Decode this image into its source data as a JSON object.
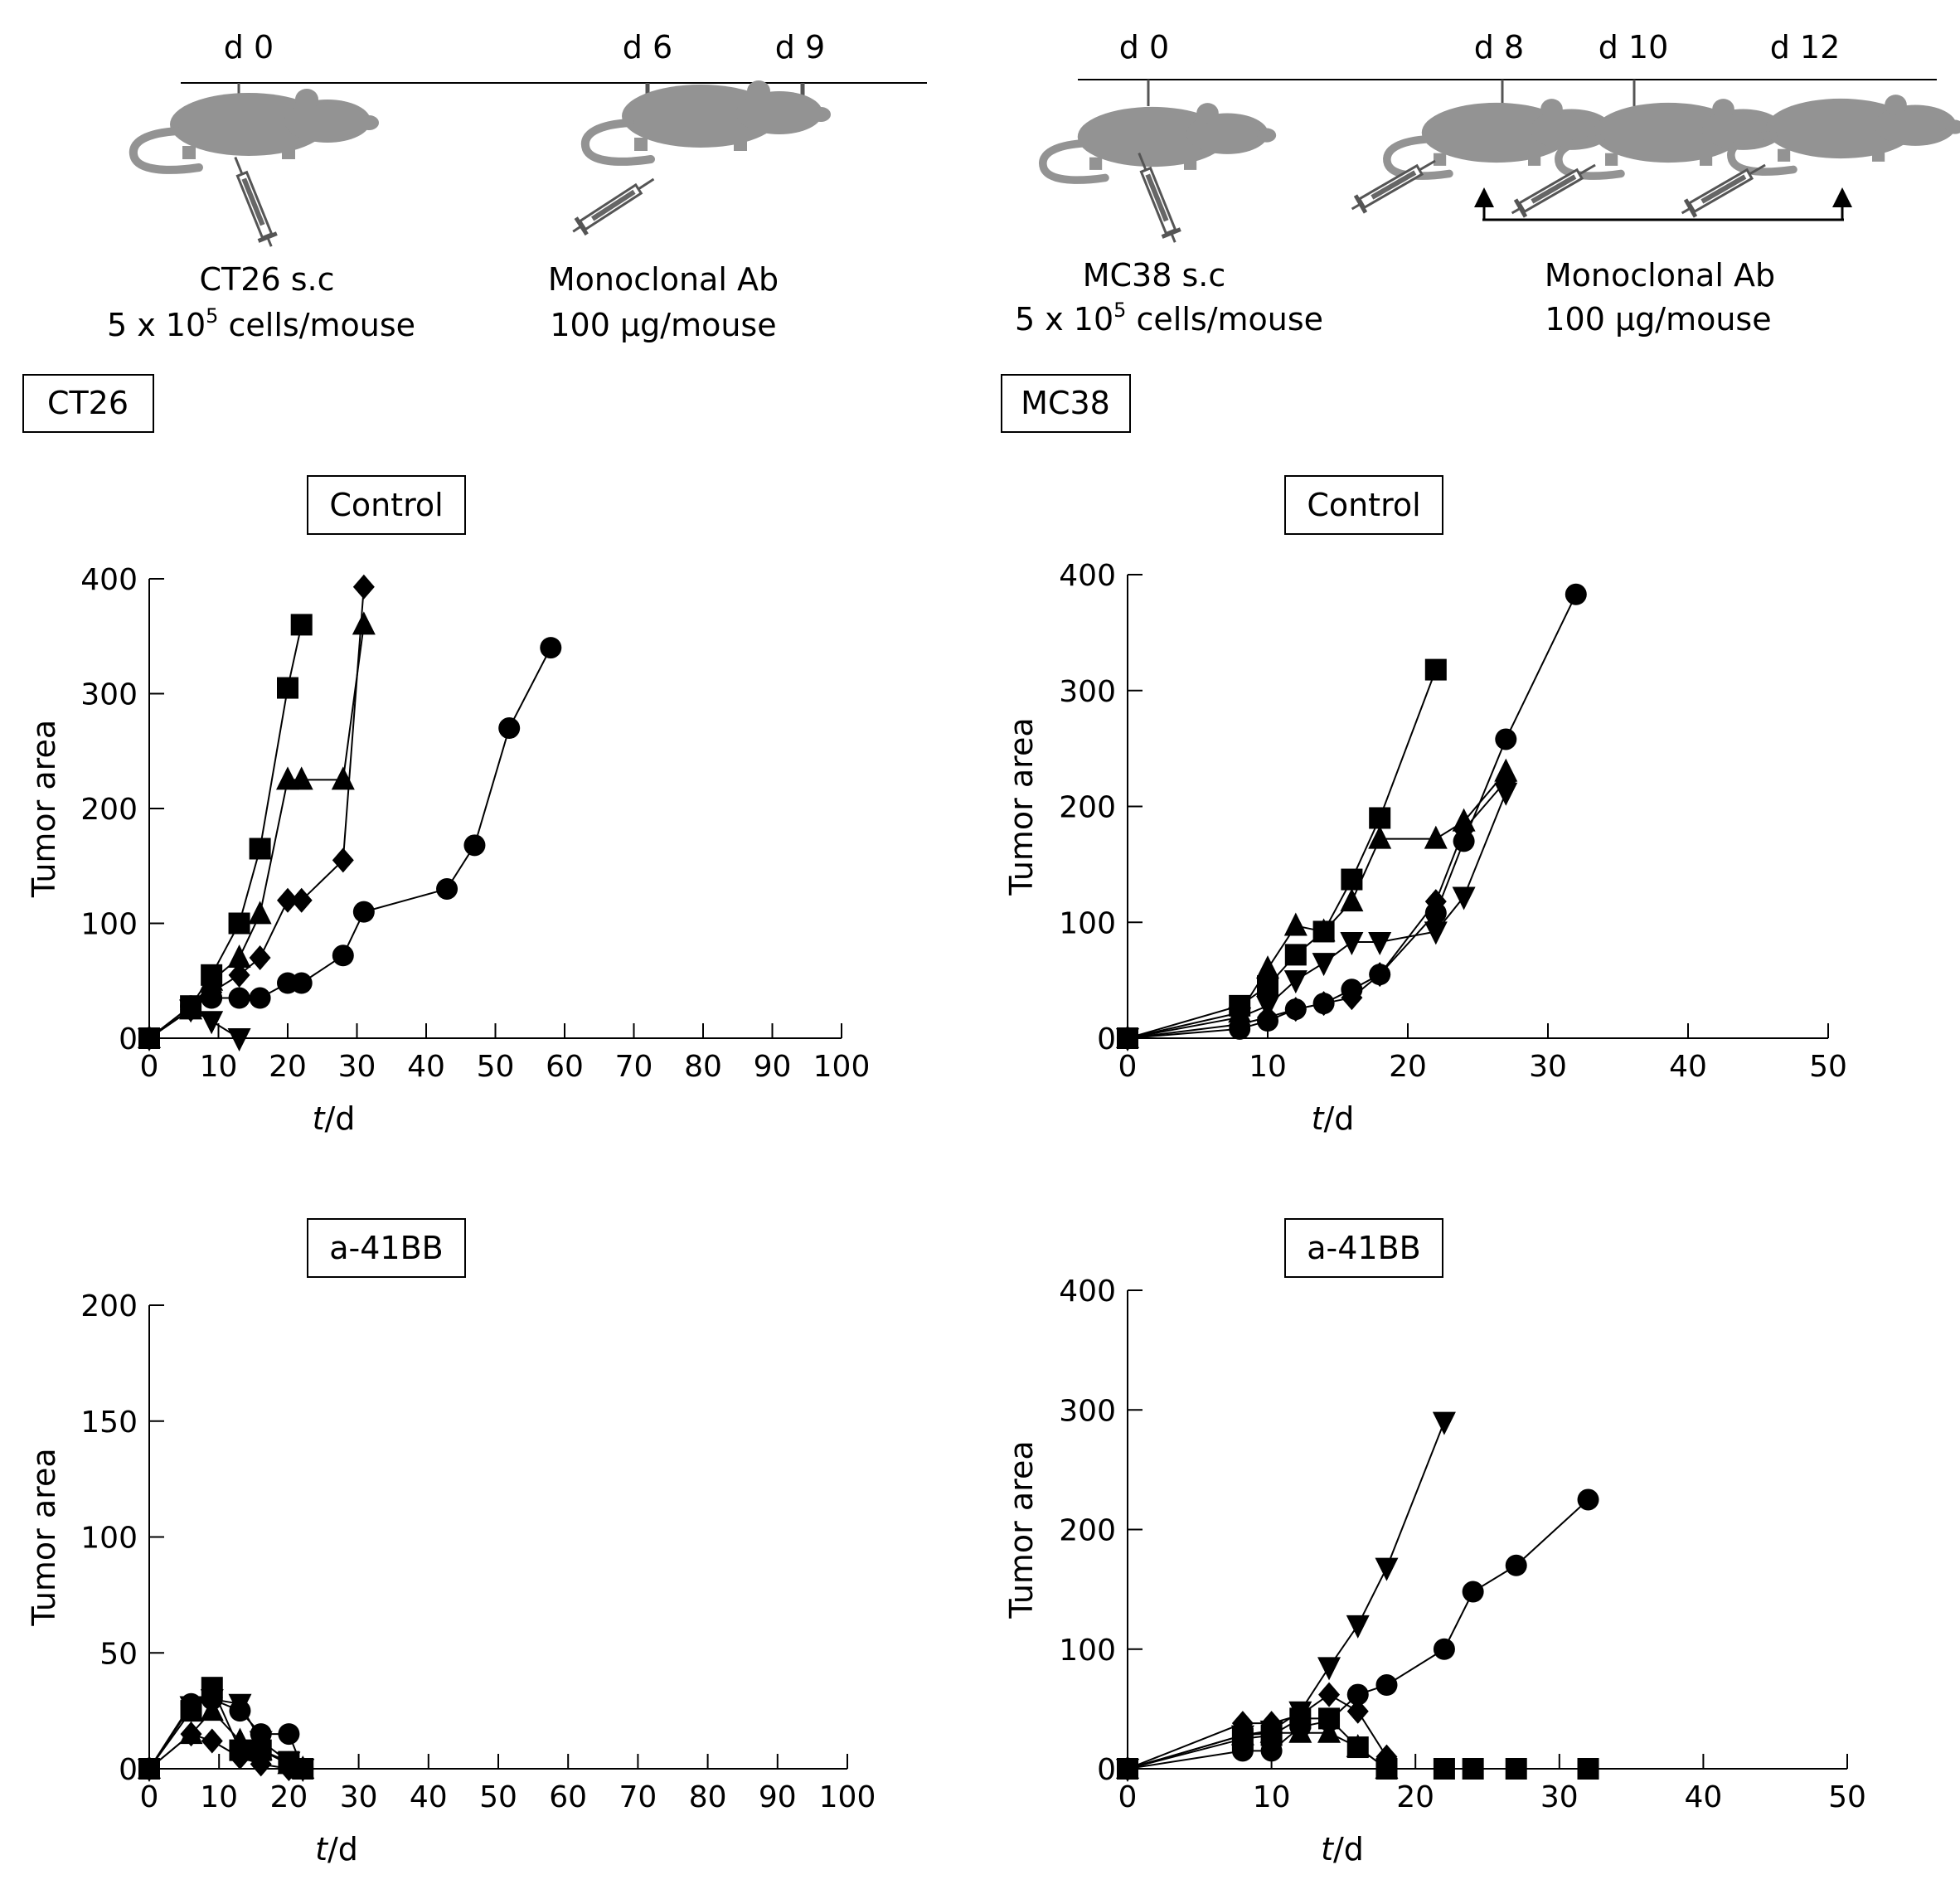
{
  "schematics": [
    {
      "days": [
        "d 0",
        "d 6",
        "d 9"
      ],
      "cell_line": "CT26 s.c",
      "cell_dose_prefix": "5 x 10",
      "cell_dose_exp": "5",
      "cell_dose_unit": " cells/mouse",
      "antibody": "Monoclonal Ab",
      "antibody_dose": "100 μg/mouse"
    },
    {
      "days": [
        "d 0",
        "d 8",
        "d 10",
        "d 12"
      ],
      "cell_line": "MC38 s.c",
      "cell_dose_prefix": "5 x 10",
      "cell_dose_exp": "5",
      "cell_dose_unit": " cells/mouse",
      "antibody": "Monoclonal Ab",
      "antibody_dose": "100 μg/mouse"
    }
  ],
  "model_labels": [
    "CT26",
    "MC38"
  ],
  "chart_data": [
    {
      "type": "line",
      "title": "Control",
      "model": "CT26",
      "xlabel_italic": "t",
      "xlabel_rest": "/d",
      "ylabel": "Tumor area",
      "xlim": [
        0,
        100
      ],
      "ylim": [
        0,
        400
      ],
      "xticks": [
        0,
        10,
        20,
        30,
        40,
        50,
        60,
        70,
        80,
        90,
        100
      ],
      "yticks": [
        0,
        100,
        200,
        300,
        400
      ],
      "series": [
        {
          "marker": "square",
          "x": [
            0,
            6,
            9,
            13,
            16,
            20,
            22
          ],
          "y": [
            0,
            28,
            55,
            100,
            165,
            305,
            360
          ]
        },
        {
          "marker": "triangle",
          "x": [
            0,
            6,
            9,
            13,
            16,
            20,
            22,
            28,
            31
          ],
          "y": [
            0,
            25,
            50,
            70,
            108,
            225,
            225,
            225,
            360
          ]
        },
        {
          "marker": "diamond",
          "x": [
            0,
            6,
            9,
            13,
            16,
            20,
            22,
            28,
            31
          ],
          "y": [
            0,
            25,
            40,
            55,
            70,
            120,
            120,
            155,
            393
          ]
        },
        {
          "marker": "circle",
          "x": [
            0,
            6,
            9,
            13,
            16,
            20,
            22,
            28,
            31,
            43,
            47,
            52,
            58
          ],
          "y": [
            0,
            28,
            35,
            35,
            35,
            48,
            48,
            72,
            110,
            130,
            168,
            270,
            340
          ]
        },
        {
          "marker": "tri-down",
          "x": [
            0,
            6,
            9,
            13
          ],
          "y": [
            0,
            25,
            15,
            0
          ]
        }
      ]
    },
    {
      "type": "line",
      "title": "Control",
      "model": "MC38",
      "xlabel_italic": "t",
      "xlabel_rest": "/d",
      "ylabel": "Tumor area",
      "xlim": [
        0,
        50
      ],
      "ylim": [
        0,
        400
      ],
      "xticks": [
        0,
        10,
        20,
        30,
        40,
        50
      ],
      "yticks": [
        0,
        100,
        200,
        300,
        400
      ],
      "series": [
        {
          "marker": "square",
          "x": [
            0,
            8,
            10,
            12,
            14,
            16,
            18,
            22
          ],
          "y": [
            0,
            28,
            45,
            72,
            92,
            137,
            190,
            318
          ]
        },
        {
          "marker": "triangle",
          "x": [
            0,
            8,
            10,
            12,
            14,
            16,
            18,
            22,
            24,
            27
          ],
          "y": [
            0,
            22,
            60,
            97,
            92,
            118,
            172,
            172,
            187,
            230
          ]
        },
        {
          "marker": "tri-down",
          "x": [
            0,
            8,
            10,
            12,
            14,
            16,
            18,
            22,
            24,
            27
          ],
          "y": [
            0,
            18,
            28,
            50,
            65,
            83,
            83,
            92,
            122,
            212
          ]
        },
        {
          "marker": "diamond",
          "x": [
            0,
            8,
            10,
            12,
            14,
            16,
            18,
            22,
            24,
            27
          ],
          "y": [
            0,
            12,
            18,
            25,
            30,
            35,
            55,
            118,
            180,
            222
          ]
        },
        {
          "marker": "circle",
          "x": [
            0,
            8,
            10,
            12,
            14,
            16,
            18,
            22,
            24,
            27,
            32
          ],
          "y": [
            0,
            8,
            15,
            25,
            30,
            42,
            55,
            108,
            170,
            258,
            383
          ]
        }
      ]
    },
    {
      "type": "line",
      "title": "a-41BB",
      "model": "CT26",
      "xlabel_italic": "t",
      "xlabel_rest": "/d",
      "ylabel": "Tumor area",
      "xlim": [
        0,
        100
      ],
      "ylim": [
        0,
        200
      ],
      "xticks": [
        0,
        10,
        20,
        30,
        40,
        50,
        60,
        70,
        80,
        90,
        100
      ],
      "yticks": [
        0,
        50,
        100,
        150,
        200
      ],
      "series": [
        {
          "marker": "square",
          "x": [
            0,
            6,
            9,
            13,
            16,
            20,
            22
          ],
          "y": [
            0,
            25,
            35,
            8,
            8,
            3,
            0
          ]
        },
        {
          "marker": "triangle",
          "x": [
            0,
            6,
            9,
            13,
            16,
            20,
            22
          ],
          "y": [
            0,
            15,
            25,
            12,
            8,
            2,
            0
          ]
        },
        {
          "marker": "diamond",
          "x": [
            0,
            6,
            9,
            13,
            16,
            20,
            22
          ],
          "y": [
            0,
            15,
            12,
            5,
            2,
            0,
            0
          ]
        },
        {
          "marker": "circle",
          "x": [
            0,
            6,
            9,
            13,
            16,
            20,
            22
          ],
          "y": [
            0,
            28,
            30,
            25,
            15,
            15,
            0
          ]
        },
        {
          "marker": "tri-down",
          "x": [
            0,
            6,
            9,
            13,
            16,
            20,
            22
          ],
          "y": [
            0,
            27,
            30,
            28,
            12,
            3,
            0
          ]
        }
      ]
    },
    {
      "type": "line",
      "title": "a-41BB",
      "model": "MC38",
      "xlabel_italic": "t",
      "xlabel_rest": "/d",
      "ylabel": "Tumor area",
      "xlim": [
        0,
        50
      ],
      "ylim": [
        0,
        400
      ],
      "xticks": [
        0,
        10,
        20,
        30,
        40,
        50
      ],
      "yticks": [
        0,
        100,
        200,
        300,
        400
      ],
      "series": [
        {
          "marker": "tri-down",
          "x": [
            0,
            8,
            10,
            12,
            14,
            16,
            18,
            22
          ],
          "y": [
            0,
            28,
            32,
            48,
            85,
            120,
            168,
            290
          ]
        },
        {
          "marker": "circle",
          "x": [
            0,
            8,
            10,
            12,
            14,
            16,
            18,
            22,
            24,
            27,
            32
          ],
          "y": [
            0,
            15,
            15,
            35,
            40,
            62,
            70,
            100,
            148,
            170,
            225
          ]
        },
        {
          "marker": "diamond",
          "x": [
            0,
            8,
            10,
            12,
            14,
            16,
            18
          ],
          "y": [
            0,
            38,
            38,
            45,
            62,
            48,
            10
          ]
        },
        {
          "marker": "triangle",
          "x": [
            0,
            8,
            10,
            12,
            14,
            16,
            18
          ],
          "y": [
            0,
            28,
            30,
            30,
            30,
            18,
            0
          ]
        },
        {
          "marker": "square",
          "x": [
            0,
            8,
            10,
            12,
            14,
            16,
            18,
            22,
            24,
            27,
            32
          ],
          "y": [
            0,
            25,
            28,
            42,
            42,
            18,
            0,
            0,
            0,
            0,
            0
          ]
        }
      ]
    }
  ]
}
